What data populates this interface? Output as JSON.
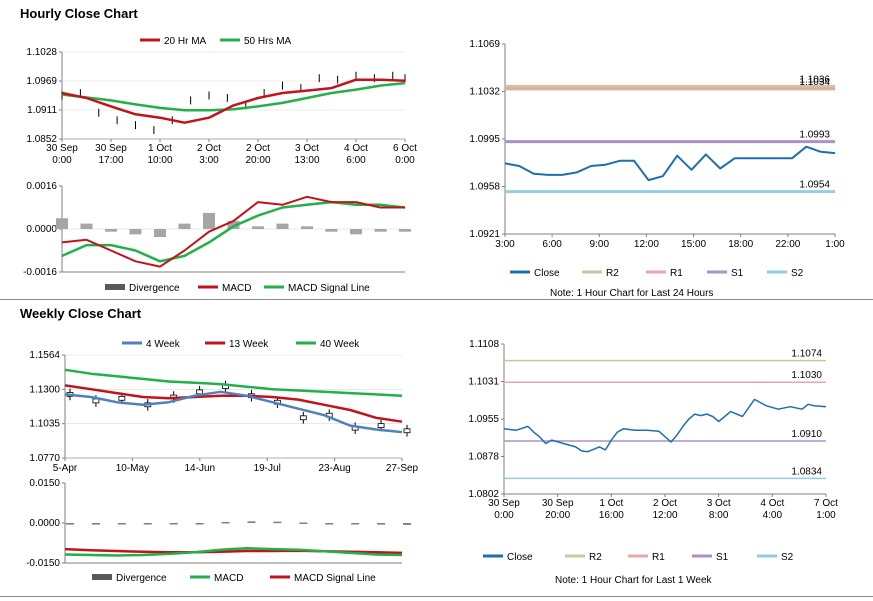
{
  "sections": {
    "hourly_title": "Hourly Close Chart",
    "weekly_title": "Weekly Close Chart"
  },
  "colors": {
    "red": "#c0141c",
    "green": "#23b04a",
    "blue": "#4f81bd",
    "close": "#1f6fad",
    "r2": "#c4c99e",
    "r1": "#e4a8a8",
    "s1": "#a892c7",
    "s2": "#92cde0",
    "bar": "#a6a6a6",
    "axis": "#808080"
  },
  "chart_data": [
    {
      "id": "hourly_price",
      "type": "line",
      "title": "Hourly Close Chart",
      "legend": [
        "20 Hr MA",
        "50 Hrs MA"
      ],
      "x_tick_labels": [
        [
          "30 Sep",
          "0:00"
        ],
        [
          "30 Sep",
          "17:00"
        ],
        [
          "1 Oct",
          "10:00"
        ],
        [
          "2 Oct",
          "3:00"
        ],
        [
          "2 Oct",
          "20:00"
        ],
        [
          "3 Oct",
          "13:00"
        ],
        [
          "4 Oct",
          "6:00"
        ],
        [
          "6 Oct",
          "0:00"
        ]
      ],
      "y_tick_labels": [
        "1.1028",
        "1.0969",
        "1.0911",
        "1.0852"
      ],
      "ylim": [
        1.0852,
        1.1028
      ],
      "series": [
        {
          "name": "20 Hr MA",
          "x": [
            0,
            4,
            8,
            12,
            16,
            20,
            24,
            28,
            32,
            36,
            40,
            44,
            48,
            52,
            56
          ],
          "values": [
            1.0945,
            1.0935,
            1.0918,
            1.0902,
            1.0895,
            1.0885,
            1.0895,
            1.092,
            1.0935,
            1.0945,
            1.095,
            1.0955,
            1.0972,
            1.0972,
            1.097
          ]
        },
        {
          "name": "50 Hrs MA",
          "x": [
            0,
            4,
            8,
            12,
            16,
            20,
            24,
            28,
            32,
            36,
            40,
            44,
            48,
            52,
            56
          ],
          "values": [
            1.0942,
            1.0936,
            1.093,
            1.0922,
            1.0915,
            1.091,
            1.091,
            1.0912,
            1.0918,
            1.0925,
            1.0935,
            1.0945,
            1.0952,
            1.096,
            1.0965
          ]
        },
        {
          "name": "Close",
          "x": [
            0,
            3,
            6,
            9,
            12,
            15,
            18,
            21,
            24,
            27,
            30,
            33,
            36,
            39,
            42,
            45,
            48,
            51,
            54,
            56
          ],
          "values": [
            1.094,
            1.0945,
            1.0905,
            1.089,
            1.088,
            1.087,
            1.089,
            1.093,
            1.094,
            1.0935,
            1.092,
            1.0945,
            1.096,
            1.0955,
            1.0975,
            1.0972,
            1.098,
            1.0975,
            1.098,
            1.0975
          ]
        }
      ]
    },
    {
      "id": "hourly_macd",
      "type": "bar",
      "legend": [
        "Divergence",
        "MACD",
        "MACD Signal Line"
      ],
      "y_tick_labels": [
        "0.0016",
        "0.0000",
        "-0.0016"
      ],
      "ylim": [
        -0.0016,
        0.0016
      ],
      "series": [
        {
          "name": "Divergence",
          "x": [
            0,
            4,
            8,
            12,
            16,
            20,
            24,
            28,
            32,
            36,
            40,
            44,
            48,
            52,
            56
          ],
          "values": [
            0.0004,
            0.0002,
            -0.0001,
            -0.0002,
            -0.0003,
            0.0002,
            0.0006,
            0.0003,
            0.0001,
            0.0002,
            0.0001,
            -0.0001,
            -0.0002,
            -0.0001,
            -0.0001
          ]
        },
        {
          "name": "MACD",
          "x": [
            0,
            4,
            8,
            12,
            16,
            20,
            24,
            28,
            32,
            36,
            40,
            44,
            48,
            52,
            56
          ],
          "values": [
            -0.0005,
            -0.0004,
            -0.0008,
            -0.0012,
            -0.0014,
            -0.0008,
            -0.0001,
            0.0003,
            0.001,
            0.0009,
            0.0012,
            0.001,
            0.001,
            0.0008,
            0.0008
          ]
        },
        {
          "name": "MACD Signal Line",
          "x": [
            0,
            4,
            8,
            12,
            16,
            20,
            24,
            28,
            32,
            36,
            40,
            44,
            48,
            52,
            56
          ],
          "values": [
            -0.001,
            -0.0006,
            -0.0006,
            -0.0008,
            -0.0012,
            -0.001,
            -0.0005,
            0.0001,
            0.0005,
            0.0008,
            0.0009,
            0.001,
            0.0009,
            0.0009,
            0.0008
          ]
        }
      ]
    },
    {
      "id": "hourly_close",
      "type": "line",
      "note": "Note: 1 Hour Chart for Last 24 Hours",
      "x_tick_labels": [
        "3:00",
        "6:00",
        "9:00",
        "12:00",
        "15:00",
        "18:00",
        "22:00",
        "1:00"
      ],
      "y_tick_labels": [
        "1.1069",
        "1.1032",
        "1.0995",
        "1.0958",
        "1.0921"
      ],
      "ylim": [
        1.0921,
        1.1069
      ],
      "levels": [
        {
          "name": "R2",
          "value": 1.1036,
          "label": "1.1036"
        },
        {
          "name": "R1",
          "value": 1.1034,
          "label": "1.1034"
        },
        {
          "name": "S1",
          "value": 1.0993,
          "label": "1.0993"
        },
        {
          "name": "S2",
          "value": 1.0954,
          "label": "1.0954"
        }
      ],
      "legend": [
        "Close",
        "R2",
        "R1",
        "S1",
        "S2"
      ],
      "series": [
        {
          "name": "Close",
          "x": [
            0,
            1,
            2,
            3,
            4,
            5,
            6,
            7,
            8,
            9,
            10,
            11,
            12,
            13,
            14,
            15,
            16,
            17,
            18,
            19,
            20,
            21,
            22,
            23
          ],
          "values": [
            1.0976,
            1.0974,
            1.0968,
            1.0967,
            1.0967,
            1.0969,
            1.0974,
            1.0975,
            1.0978,
            1.0978,
            1.0963,
            1.0966,
            1.0982,
            1.0971,
            1.0983,
            1.0972,
            1.098,
            1.098,
            1.098,
            1.098,
            1.098,
            1.0989,
            1.0985,
            1.0984
          ]
        }
      ]
    },
    {
      "id": "weekly_price",
      "type": "line",
      "title": "Weekly Close Chart",
      "legend": [
        "4 Week",
        "13 Week",
        "40 Week"
      ],
      "x_tick_labels": [
        "5-Apr",
        "10-May",
        "14-Jun",
        "19-Jul",
        "23-Aug",
        "27-Sep"
      ],
      "y_tick_labels": [
        "1.1564",
        "1.1300",
        "1.1035",
        "1.0770"
      ],
      "ylim": [
        1.077,
        1.1564
      ],
      "series": [
        {
          "name": "4 Week",
          "x": [
            0,
            2,
            4,
            6,
            8,
            10,
            12,
            14,
            16,
            18,
            20,
            22,
            24,
            26
          ],
          "values": [
            1.126,
            1.124,
            1.12,
            1.118,
            1.12,
            1.125,
            1.128,
            1.125,
            1.12,
            1.115,
            1.11,
            1.102,
            1.099,
            1.097
          ]
        },
        {
          "name": "13 Week",
          "x": [
            0,
            2,
            4,
            6,
            8,
            10,
            12,
            14,
            16,
            18,
            20,
            22,
            24,
            26
          ],
          "values": [
            1.133,
            1.13,
            1.127,
            1.124,
            1.123,
            1.124,
            1.125,
            1.125,
            1.124,
            1.122,
            1.118,
            1.114,
            1.108,
            1.105
          ]
        },
        {
          "name": "40 Week",
          "x": [
            0,
            2,
            4,
            6,
            8,
            10,
            12,
            14,
            16,
            18,
            20,
            22,
            24,
            26
          ],
          "values": [
            1.145,
            1.142,
            1.14,
            1.138,
            1.136,
            1.135,
            1.134,
            1.132,
            1.13,
            1.129,
            1.128,
            1.127,
            1.126,
            1.125
          ]
        },
        {
          "name": "Close",
          "x": [
            0,
            2,
            4,
            6,
            8,
            10,
            12,
            14,
            16,
            18,
            20,
            22,
            24,
            26
          ],
          "values": [
            1.126,
            1.121,
            1.123,
            1.118,
            1.124,
            1.128,
            1.132,
            1.125,
            1.12,
            1.108,
            1.11,
            1.1,
            1.102,
            1.098
          ]
        }
      ]
    },
    {
      "id": "weekly_macd",
      "type": "bar",
      "legend": [
        "Divergence",
        "MACD",
        "MACD Signal Line"
      ],
      "y_tick_labels": [
        "0.0150",
        "0.0000",
        "-0.0150"
      ],
      "ylim": [
        -0.015,
        0.015
      ],
      "series": [
        {
          "name": "Divergence",
          "x": [
            0,
            2,
            4,
            6,
            8,
            10,
            12,
            14,
            16,
            18,
            20,
            22,
            24,
            26
          ],
          "values": [
            -0.0006,
            -0.0006,
            -0.0005,
            -0.0005,
            -0.0003,
            -0.0002,
            0.0004,
            0.0006,
            0.0005,
            0.0002,
            -0.0002,
            -0.0004,
            -0.0006,
            -0.0007
          ]
        },
        {
          "name": "MACD",
          "x": [
            0,
            2,
            4,
            6,
            8,
            10,
            12,
            14,
            16,
            18,
            20,
            22,
            24,
            26
          ],
          "values": [
            -0.0118,
            -0.012,
            -0.0122,
            -0.012,
            -0.0116,
            -0.011,
            -0.01,
            -0.0095,
            -0.0098,
            -0.01,
            -0.0106,
            -0.0112,
            -0.0118,
            -0.012
          ]
        },
        {
          "name": "MACD Signal Line",
          "x": [
            0,
            2,
            4,
            6,
            8,
            10,
            12,
            14,
            16,
            18,
            20,
            22,
            24,
            26
          ],
          "values": [
            -0.0098,
            -0.0102,
            -0.0105,
            -0.0108,
            -0.011,
            -0.011,
            -0.0108,
            -0.0105,
            -0.0105,
            -0.0104,
            -0.0106,
            -0.0108,
            -0.011,
            -0.0112
          ]
        }
      ]
    },
    {
      "id": "weekly_close",
      "type": "line",
      "note": "Note: 1 Hour Chart for Last 1 Week",
      "x_tick_labels": [
        [
          "30 Sep",
          "0:00"
        ],
        [
          "30 Sep",
          "20:00"
        ],
        [
          "1 Oct",
          "16:00"
        ],
        [
          "2 Oct",
          "12:00"
        ],
        [
          "3 Oct",
          "8:00"
        ],
        [
          "4 Oct",
          "4:00"
        ],
        [
          "7 Oct",
          "1:00"
        ]
      ],
      "y_tick_labels": [
        "1.1108",
        "1.1031",
        "1.0955",
        "1.0878",
        "1.0802"
      ],
      "ylim": [
        1.0802,
        1.1108
      ],
      "levels": [
        {
          "name": "R2",
          "value": 1.1074,
          "label": "1.1074"
        },
        {
          "name": "R1",
          "value": 1.103,
          "label": "1.1030"
        },
        {
          "name": "S1",
          "value": 1.091,
          "label": "1.0910"
        },
        {
          "name": "S2",
          "value": 1.0834,
          "label": "1.0834"
        }
      ],
      "legend": [
        "Close",
        "R2",
        "R1",
        "S1",
        "S2"
      ],
      "series": [
        {
          "name": "Close",
          "x": [
            0,
            2,
            4,
            5,
            6,
            7,
            8,
            10,
            12,
            13,
            14,
            16,
            17,
            18,
            19,
            20,
            22,
            24,
            26,
            28,
            29,
            30,
            31,
            32,
            33,
            34,
            35,
            36,
            38,
            40,
            42,
            44,
            46,
            48,
            50,
            51,
            52,
            54
          ],
          "values": [
            1.0935,
            1.0932,
            1.094,
            1.0928,
            1.0918,
            1.0905,
            1.0912,
            1.0905,
            1.0898,
            1.089,
            1.0888,
            1.0898,
            1.0892,
            1.0912,
            1.0928,
            1.0935,
            1.0932,
            1.0932,
            1.093,
            1.0908,
            1.0922,
            1.094,
            1.0955,
            1.0965,
            1.0962,
            1.0965,
            1.096,
            1.095,
            1.097,
            1.096,
            1.0995,
            1.0982,
            1.0975,
            1.098,
            1.0975,
            1.0985,
            1.0982,
            1.098
          ]
        }
      ]
    }
  ]
}
